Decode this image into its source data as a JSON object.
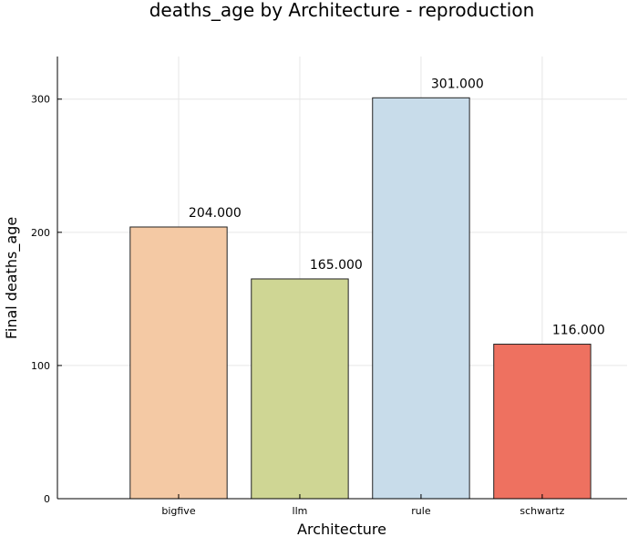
{
  "chart_data": {
    "type": "bar",
    "title": "deaths_age by Architecture - reproduction",
    "xlabel": "Architecture",
    "ylabel": "Final deaths_age",
    "categories": [
      "bigfive",
      "llm",
      "rule",
      "schwartz"
    ],
    "values": [
      204,
      165,
      301,
      116
    ],
    "value_labels": [
      "204.000",
      "165.000",
      "301.000",
      "116.000"
    ],
    "colors": [
      "#f4c9a4",
      "#cfd694",
      "#c8dcea",
      "#ee7160"
    ],
    "ylim": [
      0,
      332
    ],
    "yticks": [
      0,
      100,
      200,
      300
    ],
    "grid": true,
    "legend": "none"
  }
}
